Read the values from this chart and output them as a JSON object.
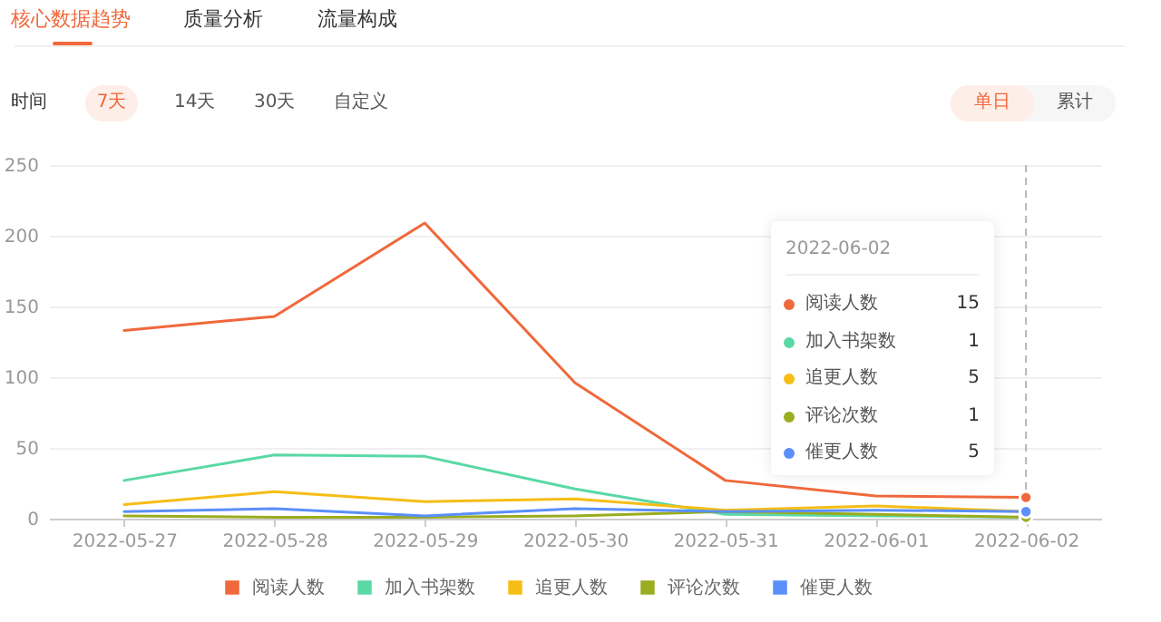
{
  "chart_data": {
    "type": "line",
    "title": "核心数据趋势",
    "annotations": [
      "质量分析",
      "流量构成",
      "时间",
      "7天",
      "14天",
      "30天",
      "自定义",
      "单日",
      "累计",
      "15",
      "1",
      "5",
      "1",
      "5"
    ],
    "categories": [
      "2022-05-27",
      "2022-05-28",
      "2022-05-29",
      "2022-05-30",
      "2022-05-31",
      "2022-06-01",
      "2022-06-02"
    ],
    "series": [
      {
        "name": "阅读人数",
        "color": "#f0683b",
        "values": [
          133,
          143,
          209,
          96,
          27,
          16,
          15
        ]
      },
      {
        "name": "加入书架数",
        "color": "#5ad8a6",
        "values": [
          27,
          45,
          44,
          21,
          3,
          2,
          1
        ]
      },
      {
        "name": "追更人数",
        "color": "#f6bd16",
        "values": [
          10,
          19,
          12,
          14,
          6,
          9,
          5
        ]
      },
      {
        "name": "评论次数",
        "color": "#9aac1f",
        "values": [
          2,
          1,
          1,
          2,
          5,
          3,
          1
        ]
      },
      {
        "name": "催更人数",
        "color": "#5b8ff9",
        "values": [
          5,
          7,
          2,
          7,
          5,
          6,
          5
        ]
      }
    ],
    "ylim": [
      0,
      250
    ],
    "yticks": [
      0,
      50,
      100,
      150,
      200,
      250
    ],
    "grid": "y",
    "legend": "bottom",
    "ref_lines": [
      {
        "axis": "x",
        "value": "2022-06-02",
        "color": "#b5b5b5",
        "line_style": "dashed"
      }
    ]
  }
}
